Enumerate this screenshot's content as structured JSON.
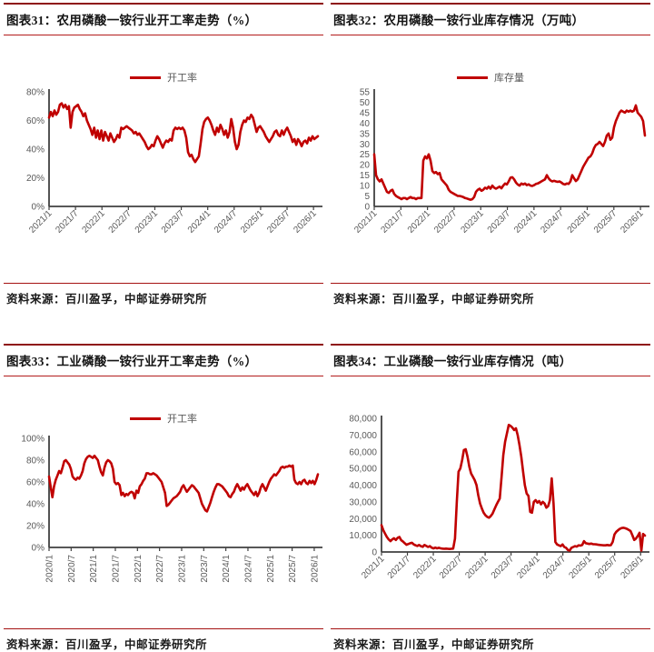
{
  "sources": {
    "text": "资料来源：百川盈孚，中邮证券研究所"
  },
  "chart_data": [
    {
      "id": "fig31",
      "type": "line",
      "title": "图表31：农用磷酸一铵行业开工率走势（%）",
      "legend": "开工率",
      "line_color": "#c00000",
      "ylim": [
        0,
        80
      ],
      "ytick_values": [
        0,
        20,
        40,
        60,
        80
      ],
      "ytick_labels": [
        "0%",
        "20%",
        "40%",
        "60%",
        "80%"
      ],
      "x_tick_months": [
        0,
        6,
        12,
        18,
        24,
        30,
        36,
        42,
        48,
        54,
        60
      ],
      "x_months_span": 61,
      "x_tick_labels": [
        "2021/1",
        "2021/7",
        "2022/1",
        "2022/7",
        "2023/1",
        "2023/7",
        "2024/1",
        "2024/7",
        "2025/1",
        "2025/7",
        "2026/1"
      ],
      "x_label_rotation": 45,
      "values": [
        62,
        66,
        63,
        67,
        64,
        66,
        71,
        72,
        69,
        71,
        68,
        70,
        55,
        66,
        69,
        70,
        71,
        68,
        66,
        63,
        65,
        60,
        57,
        54,
        50,
        55,
        48,
        53,
        47,
        53,
        46,
        52,
        49,
        46,
        51,
        48,
        45,
        47,
        50,
        48,
        55,
        54,
        55,
        56,
        55,
        54,
        53,
        51,
        52,
        50,
        51,
        49,
        47,
        45,
        42,
        40,
        41,
        43,
        42,
        46,
        49,
        47,
        44,
        41,
        44,
        46,
        45,
        47,
        46,
        53,
        55,
        54,
        55,
        54,
        55,
        53,
        48,
        38,
        35,
        36,
        33,
        31,
        33,
        35,
        44,
        54,
        59,
        61,
        62,
        60,
        57,
        53,
        50,
        55,
        52,
        57,
        54,
        50,
        53,
        48,
        52,
        61,
        55,
        45,
        40,
        43,
        52,
        57,
        60,
        59,
        62,
        61,
        64,
        62,
        57,
        52,
        55,
        56,
        54,
        52,
        49,
        47,
        45,
        47,
        49,
        52,
        53,
        50,
        49,
        53,
        50,
        53,
        55,
        52,
        49,
        45,
        47,
        43,
        47,
        45,
        42,
        45,
        46,
        44,
        48,
        46,
        49,
        47,
        48,
        49
      ]
    },
    {
      "id": "fig32",
      "type": "line",
      "title": "图表32：农用磷酸一铵行业库存情况（万吨）",
      "legend": "库存量",
      "line_color": "#c00000",
      "ylim": [
        0,
        55
      ],
      "ytick_values": [
        0,
        5,
        10,
        15,
        20,
        25,
        30,
        35,
        40,
        45,
        50,
        55
      ],
      "ytick_labels": [
        "0",
        "5",
        "10",
        "15",
        "20",
        "25",
        "30",
        "35",
        "40",
        "45",
        "50",
        "55"
      ],
      "x_tick_months": [
        0,
        6,
        12,
        18,
        24,
        30,
        36,
        42,
        48,
        54,
        60
      ],
      "x_months_span": 61,
      "x_tick_labels": [
        "2021/1",
        "2021/7",
        "2022/1",
        "2022/7",
        "2023/1",
        "2023/7",
        "2024/1",
        "2024/7",
        "2025/1",
        "2025/7",
        "2026/1"
      ],
      "x_label_rotation": 45,
      "values": [
        25,
        15,
        13,
        12,
        13,
        11,
        9,
        7,
        6.5,
        7.5,
        8,
        6,
        5,
        4.5,
        4,
        3.5,
        4,
        4,
        3.5,
        4,
        4.5,
        4,
        4,
        3.5,
        4,
        4,
        4,
        22,
        24,
        23,
        25,
        22,
        17,
        16,
        16.5,
        15.5,
        16,
        13,
        12,
        11,
        10,
        8,
        7,
        6.5,
        6,
        5.5,
        5,
        5,
        4.8,
        4.5,
        4,
        3.8,
        3.5,
        3.2,
        3.5,
        4.5,
        7,
        8,
        8.5,
        7.5,
        8,
        9,
        8.5,
        9.5,
        8.5,
        10,
        9,
        8.5,
        9,
        9.5,
        8.7,
        10,
        11,
        10.5,
        12,
        13.8,
        14,
        13,
        11.5,
        10.5,
        10,
        11,
        10.5,
        11,
        10.2,
        10.6,
        10,
        9.8,
        10.2,
        10.8,
        11,
        11.5,
        12,
        12.5,
        13,
        15,
        13.5,
        12.5,
        12,
        12.3,
        12,
        11.8,
        12,
        11.5,
        10.8,
        10.5,
        11,
        10.8,
        12,
        15,
        13.5,
        12.2,
        13,
        15,
        17,
        19,
        20.5,
        22,
        23.5,
        24,
        25.5,
        28,
        29.5,
        30,
        31,
        30,
        29,
        31,
        34,
        35,
        32,
        33,
        38,
        41,
        43,
        45,
        46,
        45.5,
        45,
        46,
        45.5,
        46,
        45.5,
        46,
        48.5,
        45,
        44,
        43,
        41,
        34
      ]
    },
    {
      "id": "fig33",
      "type": "line",
      "title": "图表33：工业磷酸一铵行业开工率走势（%）",
      "legend": "开工率",
      "line_color": "#c00000",
      "ylim": [
        0,
        100
      ],
      "ytick_values": [
        0,
        20,
        40,
        60,
        80,
        100
      ],
      "ytick_labels": [
        "0%",
        "20%",
        "40%",
        "60%",
        "80%",
        "100%"
      ],
      "x_tick_months": [
        0,
        6,
        12,
        18,
        24,
        30,
        36,
        42,
        48,
        54,
        60,
        66,
        72
      ],
      "x_months_span": 73,
      "x_tick_labels": [
        "2020/1",
        "2020/7",
        "2021/1",
        "2021/7",
        "2022/1",
        "2022/7",
        "2023/1",
        "2023/7",
        "2024/1",
        "2024/7",
        "2025/1",
        "2025/7",
        "2026/1"
      ],
      "x_label_rotation": 90,
      "values": [
        65,
        55,
        46,
        56,
        62,
        66,
        70,
        68,
        73,
        79,
        80,
        78,
        76,
        72,
        65,
        63,
        62,
        64,
        63,
        66,
        70,
        77,
        81,
        83,
        84,
        83,
        82,
        84,
        82,
        80,
        74,
        69,
        66,
        73,
        78,
        80,
        79,
        77,
        72,
        60,
        58,
        59,
        57,
        48,
        50,
        47,
        49,
        48,
        50,
        51,
        50,
        45,
        52,
        50,
        56,
        58,
        61,
        63,
        68,
        68,
        67,
        67,
        68,
        67,
        66,
        64,
        62,
        60,
        55,
        50,
        38,
        39,
        41,
        43,
        45,
        46,
        47,
        49,
        51,
        55,
        57,
        54,
        51,
        53,
        55,
        57,
        56,
        54,
        52,
        50,
        45,
        40,
        37,
        34,
        33,
        37,
        41,
        46,
        51,
        55,
        58,
        58,
        57,
        56,
        54,
        52,
        50,
        47,
        46,
        49,
        51,
        55,
        58,
        55,
        52,
        55,
        53,
        56,
        58,
        55,
        52,
        50,
        48,
        51,
        47,
        50,
        55,
        58,
        55,
        52,
        56,
        60,
        63,
        65,
        67,
        66,
        68,
        70,
        73,
        74,
        73,
        74,
        74,
        75,
        74,
        75,
        62,
        59,
        58,
        60,
        58,
        61,
        62,
        59,
        58,
        61,
        59,
        61,
        58,
        62,
        67
      ]
    },
    {
      "id": "fig34",
      "type": "line",
      "title": "图表34：工业磷酸一铵行业库存情况（吨）",
      "legend": null,
      "line_color": "#c00000",
      "ylim": [
        0,
        80000
      ],
      "ytick_values": [
        0,
        10000,
        20000,
        30000,
        40000,
        50000,
        60000,
        70000,
        80000
      ],
      "ytick_labels": [
        "0",
        "10,000",
        "20,000",
        "30,000",
        "40,000",
        "50,000",
        "60,000",
        "70,000",
        "80,000"
      ],
      "x_tick_months": [
        0,
        6,
        12,
        18,
        24,
        30,
        36,
        42,
        48,
        54,
        60
      ],
      "x_months_span": 61,
      "x_tick_labels": [
        "2021/1",
        "2021/7",
        "2022/1",
        "2022/7",
        "2023/1",
        "2023/7",
        "2024/1",
        "2024/7",
        "2025/1",
        "2025/7",
        "2026/1"
      ],
      "x_label_rotation": 45,
      "values": [
        16000,
        13000,
        11000,
        9000,
        7500,
        6500,
        7500,
        8200,
        7200,
        8500,
        9000,
        7000,
        6200,
        5200,
        4300,
        4800,
        5200,
        5500,
        4500,
        4000,
        3600,
        4200,
        3500,
        3100,
        4200,
        3600,
        3000,
        3500,
        2600,
        2100,
        2600,
        2200,
        2500,
        2200,
        2000,
        1900,
        2000,
        1900,
        1800,
        1900,
        2000,
        8000,
        30000,
        48000,
        50000,
        55000,
        61000,
        61500,
        57000,
        51000,
        47000,
        45000,
        43000,
        40000,
        34000,
        29000,
        26000,
        23500,
        22000,
        21000,
        20500,
        21500,
        23000,
        25500,
        28000,
        30000,
        32000,
        45000,
        58000,
        66000,
        71000,
        76000,
        75500,
        74500,
        73000,
        74000,
        70000,
        64000,
        57000,
        48000,
        40000,
        35000,
        33500,
        24000,
        23500,
        30000,
        31000,
        29500,
        30500,
        28500,
        30000,
        29000,
        26500,
        27500,
        31000,
        44000,
        29000,
        6000,
        4500,
        4000,
        3500,
        4500,
        3000,
        2500,
        1200,
        800,
        2500,
        3000,
        3500,
        3200,
        4000,
        3800,
        4200,
        6500,
        5200,
        5000,
        4800,
        5000,
        4700,
        4600,
        4500,
        4300,
        4200,
        4100,
        4000,
        4000,
        4200,
        4000,
        4100,
        6000,
        10500,
        12000,
        13000,
        13800,
        14300,
        14500,
        14200,
        13800,
        13200,
        12500,
        10000,
        7200,
        8000,
        9500,
        11500,
        800,
        10800,
        9800
      ]
    }
  ]
}
